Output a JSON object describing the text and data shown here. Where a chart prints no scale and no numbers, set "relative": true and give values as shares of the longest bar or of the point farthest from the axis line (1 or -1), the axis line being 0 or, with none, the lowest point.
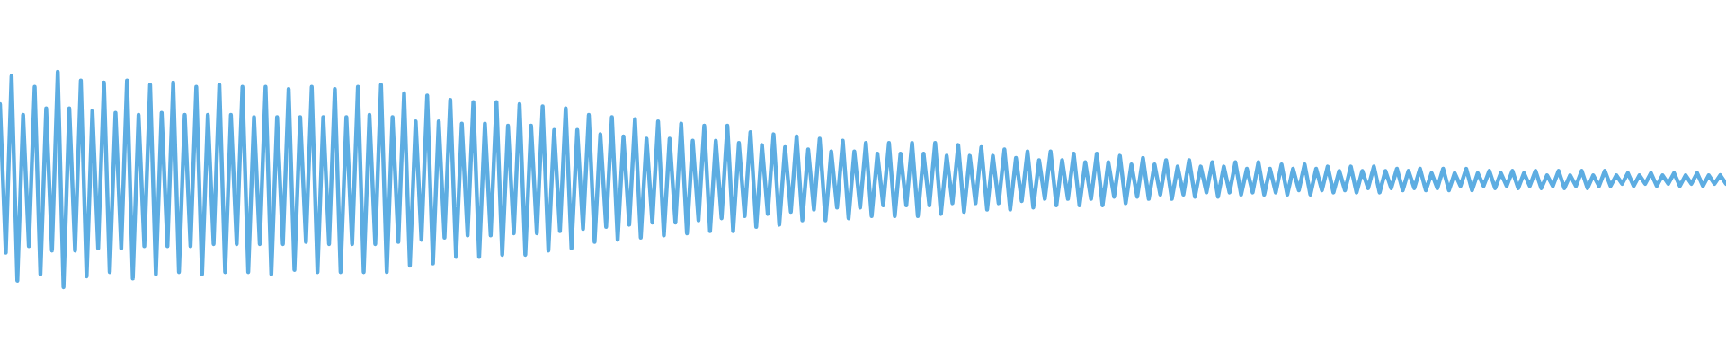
{
  "chart_data": {
    "type": "line",
    "relative": true,
    "color": "#5dade2",
    "categories": [
      null,
      null,
      null,
      null,
      null,
      null,
      null,
      null,
      null,
      null,
      null,
      null,
      null,
      null,
      null,
      null,
      null,
      null,
      null,
      null,
      null,
      null,
      null,
      null,
      null,
      null,
      null,
      null,
      null,
      null,
      null,
      null,
      null,
      null,
      null,
      null,
      null,
      null,
      null,
      null,
      null,
      null,
      null,
      null,
      null,
      null,
      null,
      null,
      null,
      null,
      null,
      null,
      null,
      null,
      null,
      null,
      null,
      null,
      null,
      null,
      null,
      null,
      null,
      null,
      null,
      null,
      null,
      null,
      null,
      null,
      null,
      null,
      null,
      null,
      null,
      null,
      null,
      null,
      null,
      null,
      null,
      null,
      null,
      null,
      null,
      null,
      null,
      null,
      null,
      null,
      null,
      null,
      null,
      null,
      null,
      null,
      null,
      null,
      null,
      null,
      null,
      null,
      null,
      null,
      null,
      null,
      null,
      null,
      null,
      null,
      null,
      null,
      null,
      null,
      null,
      null,
      null,
      null,
      null,
      null,
      null,
      null,
      null,
      null,
      null,
      null,
      null,
      null,
      null,
      null,
      null,
      null,
      null,
      null,
      null,
      null,
      null,
      null,
      null,
      null,
      null,
      null,
      null,
      null,
      null,
      null,
      null,
      null,
      null,
      null,
      null,
      null,
      null,
      null,
      null,
      null,
      null,
      null,
      null,
      null,
      null,
      null,
      null,
      null,
      null,
      null,
      null,
      null,
      null,
      null,
      null,
      null,
      null,
      null,
      null,
      null,
      null,
      null,
      null,
      null,
      null,
      null,
      null,
      null,
      null,
      null,
      null,
      null,
      null,
      null,
      null,
      null,
      null,
      null,
      null,
      null,
      null,
      null,
      null,
      null,
      null,
      null,
      null,
      null,
      null,
      null,
      null,
      null,
      null,
      null,
      null,
      null,
      null,
      null,
      null,
      null,
      null,
      null,
      null,
      null,
      null,
      null,
      null,
      null,
      null,
      null,
      null,
      null,
      null,
      null,
      null,
      null,
      null,
      null,
      null,
      null,
      null,
      null,
      null,
      null,
      null,
      null,
      null,
      null,
      null,
      null,
      null,
      null,
      null,
      null,
      null,
      null,
      null,
      null,
      null,
      null,
      null,
      null,
      null,
      null,
      null,
      null,
      null,
      null,
      null,
      null,
      null,
      null,
      null,
      null,
      null,
      null,
      null,
      null,
      null,
      null,
      null,
      null,
      null,
      null,
      null,
      null,
      null,
      null,
      null,
      null,
      null,
      null,
      null,
      null,
      null,
      null,
      null,
      null,
      null,
      null,
      null,
      null,
      null,
      null
    ],
    "values": [
      0.85,
      0.16,
      0.98,
      0.03,
      0.8,
      0.19,
      0.93,
      0.06,
      0.83,
      0.17,
      1,
      0,
      0.83,
      0.17,
      0.96,
      0.05,
      0.82,
      0.18,
      0.95,
      0.07,
      0.81,
      0.18,
      0.96,
      0.04,
      0.8,
      0.19,
      0.94,
      0.06,
      0.81,
      0.19,
      0.95,
      0.07,
      0.8,
      0.19,
      0.93,
      0.06,
      0.8,
      0.2,
      0.94,
      0.07,
      0.8,
      0.2,
      0.93,
      0.07,
      0.79,
      0.2,
      0.93,
      0.06,
      0.79,
      0.2,
      0.92,
      0.08,
      0.79,
      0.21,
      0.93,
      0.07,
      0.79,
      0.2,
      0.92,
      0.07,
      0.79,
      0.2,
      0.93,
      0.07,
      0.8,
      0.2,
      0.94,
      0.07,
      0.79,
      0.21,
      0.9,
      0.1,
      0.77,
      0.22,
      0.89,
      0.11,
      0.77,
      0.23,
      0.87,
      0.14,
      0.76,
      0.24,
      0.86,
      0.14,
      0.76,
      0.24,
      0.86,
      0.15,
      0.75,
      0.25,
      0.85,
      0.15,
      0.75,
      0.25,
      0.84,
      0.17,
      0.73,
      0.26,
      0.83,
      0.18,
      0.73,
      0.27,
      0.8,
      0.21,
      0.71,
      0.28,
      0.79,
      0.22,
      0.7,
      0.29,
      0.78,
      0.23,
      0.69,
      0.3,
      0.77,
      0.24,
      0.69,
      0.3,
      0.76,
      0.25,
      0.68,
      0.31,
      0.75,
      0.26,
      0.68,
      0.32,
      0.75,
      0.26,
      0.67,
      0.33,
      0.72,
      0.28,
      0.66,
      0.34,
      0.71,
      0.29,
      0.65,
      0.35,
      0.7,
      0.31,
      0.64,
      0.36,
      0.69,
      0.31,
      0.63,
      0.37,
      0.68,
      0.32,
      0.63,
      0.37,
      0.67,
      0.33,
      0.62,
      0.38,
      0.67,
      0.33,
      0.62,
      0.38,
      0.67,
      0.33,
      0.62,
      0.38,
      0.67,
      0.34,
      0.61,
      0.39,
      0.66,
      0.35,
      0.61,
      0.39,
      0.65,
      0.36,
      0.61,
      0.39,
      0.64,
      0.36,
      0.6,
      0.4,
      0.63,
      0.37,
      0.59,
      0.41,
      0.63,
      0.38,
      0.59,
      0.41,
      0.62,
      0.38,
      0.58,
      0.41,
      0.62,
      0.38,
      0.58,
      0.42,
      0.61,
      0.39,
      0.57,
      0.42,
      0.6,
      0.41,
      0.57,
      0.43,
      0.59,
      0.41,
      0.56,
      0.43,
      0.59,
      0.42,
      0.56,
      0.44,
      0.58,
      0.42,
      0.56,
      0.44,
      0.58,
      0.43,
      0.55,
      0.44,
      0.58,
      0.43,
      0.55,
      0.44,
      0.57,
      0.43,
      0.55,
      0.45,
      0.57,
      0.43,
      0.55,
      0.45,
      0.56,
      0.44,
      0.54,
      0.45,
      0.56,
      0.44,
      0.54,
      0.46,
      0.56,
      0.44,
      0.54,
      0.46,
      0.55,
      0.45,
      0.54,
      0.46,
      0.55,
      0.45,
      0.53,
      0.46,
      0.55,
      0.45,
      0.53,
      0.47,
      0.55,
      0.45,
      0.53,
      0.47,
      0.54,
      0.46,
      0.53,
      0.47,
      0.54,
      0.46,
      0.53,
      0.47,
      0.54,
      0.46,
      0.52,
      0.47,
      0.54,
      0.46,
      0.52,
      0.47,
      0.54,
      0.46,
      0.52,
      0.47,
      0.54,
      0.47,
      0.52,
      0.48,
      0.53,
      0.47,
      0.52,
      0.48,
      0.53,
      0.47,
      0.52,
      0.48,
      0.53,
      0.47,
      0.52,
      0.48,
      0.53,
      0.47,
      0.52,
      0.48,
      0.52,
      0.48
    ]
  }
}
